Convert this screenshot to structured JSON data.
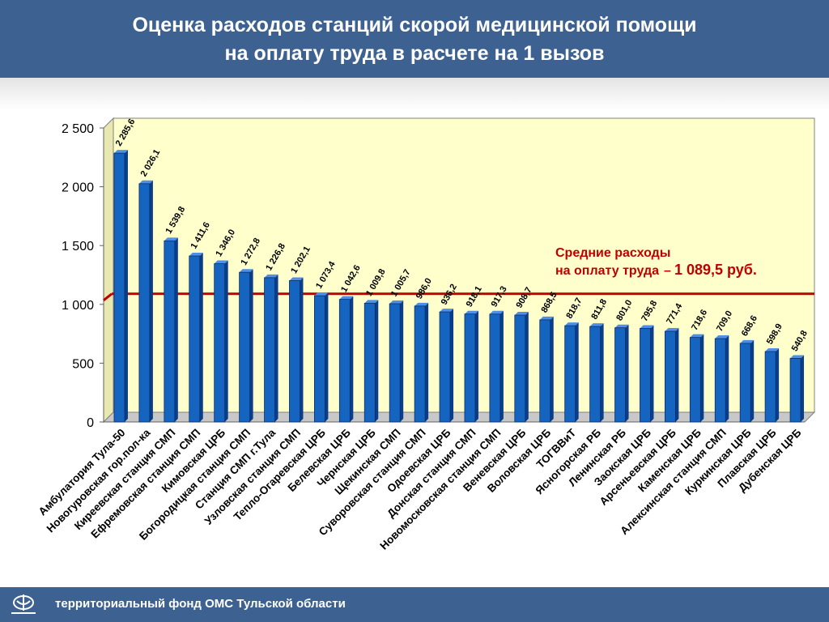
{
  "header": {
    "title_line1": "Оценка расходов станций скорой медицинской помощи",
    "title_line2": "на оплату труда в расчете на 1 вызов"
  },
  "footer": {
    "text": "территориальный фонд ОМС Тульской области",
    "logo_icon": "foms-logo-icon"
  },
  "chart_data": {
    "type": "bar",
    "title": "Оценка расходов станций скорой медицинской помощи на оплату труда в расчете на 1 вызов",
    "ylim": [
      0,
      2500
    ],
    "yticks": [
      0,
      500,
      1000,
      1500,
      2000,
      2500
    ],
    "ytick_labels": [
      "0",
      "500",
      "1 000",
      "1 500",
      "2 000",
      "2 500"
    ],
    "grid": false,
    "bar_color": "#1565c0",
    "plot_background": "#ffffcc",
    "categories": [
      "Амбулатория Тула-50",
      "Новогуровская гор.пол-ка",
      "Киреевская станция СМП",
      "Ефремовская станция СМП",
      "Кимовская ЦРБ",
      "Богородицкая станция СМП",
      "Станция СМП г.Тула",
      "Узловская станция СМП",
      "Тепло-Огаревская ЦРБ",
      "Белевская ЦРБ",
      "Чернская ЦРБ",
      "Щекинская СМП",
      "Суворовская станция СМП",
      "Одоевская ЦРБ",
      "Донская станция СМП",
      "Новомосковская станция СМП",
      "Веневская ЦРБ",
      "Воловская ЦРБ",
      "ТОГВВиТ",
      "Ясногорская РБ",
      "Ленинская РБ",
      "Заокская ЦРБ",
      "Арсеньевская ЦРБ",
      "Каменская ЦРБ",
      "Алексинская станция СМП",
      "Куркинская ЦРБ",
      "Плавская ЦРБ",
      "Дубенская ЦРБ"
    ],
    "values": [
      2285.6,
      2026.1,
      1539.8,
      1411.6,
      1346.0,
      1272.8,
      1226.8,
      1202.1,
      1073.4,
      1042.6,
      1009.8,
      1005.7,
      986.0,
      936.2,
      918.1,
      917.3,
      908.7,
      868.5,
      818.7,
      811.8,
      801.0,
      795.8,
      771.4,
      718.6,
      709.0,
      668.6,
      598.9,
      540.8
    ],
    "value_labels": [
      "2 285,6",
      "2 026,1",
      "1 539,8",
      "1 411,6",
      "1 346,0",
      "1 272,8",
      "1 226,8",
      "1 202,1",
      "1 073,4",
      "1 042,6",
      "1 009,8",
      "1 005,7",
      "986,0",
      "936,2",
      "918,1",
      "917,3",
      "908,7",
      "868,5",
      "818,7",
      "811,8",
      "801,0",
      "795,8",
      "771,4",
      "718,6",
      "709,0",
      "668,6",
      "598,9",
      "540,8"
    ],
    "average_line": {
      "value": 1089.5,
      "color": "#c00000",
      "label_line1": "Средние расходы",
      "label_line2": "на оплату труда",
      "label_dash": "–",
      "label_value": "1 089,5 руб."
    }
  }
}
